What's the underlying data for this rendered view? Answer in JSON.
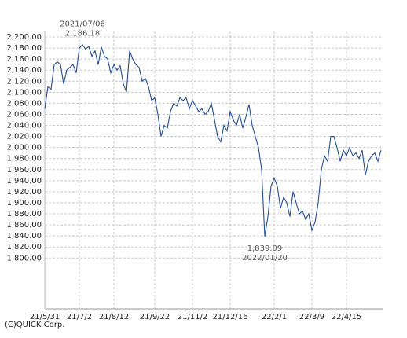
{
  "chart_data": {
    "type": "line",
    "categories": [
      "21/5/31",
      null,
      null,
      null,
      null,
      null,
      null,
      null,
      null,
      null,
      null,
      "21/7/2",
      null,
      null,
      null,
      null,
      null,
      null,
      null,
      null,
      null,
      null,
      "21/8/12",
      null,
      null,
      null,
      null,
      null,
      null,
      null,
      null,
      null,
      null,
      null,
      null,
      "21/9/22",
      null,
      null,
      null,
      null,
      null,
      null,
      null,
      null,
      null,
      null,
      null,
      "21/11/2",
      null,
      null,
      null,
      null,
      null,
      null,
      null,
      null,
      null,
      null,
      null,
      "21/12/16",
      null,
      null,
      null,
      null,
      null,
      null,
      null,
      null,
      null,
      null,
      null,
      null,
      null,
      "22/2/1",
      null,
      null,
      null,
      null,
      null,
      null,
      null,
      null,
      null,
      null,
      null,
      "22/3/9",
      null,
      null,
      null,
      null,
      null,
      null,
      null,
      null,
      null,
      null,
      "22/4/15",
      null,
      null,
      null,
      null,
      null,
      null,
      null,
      null,
      null,
      null,
      null
    ],
    "values": [
      2070,
      2110,
      2105,
      2150,
      2155,
      2150,
      2115,
      2140,
      2145,
      2150,
      2135,
      2180,
      2186.18,
      2178,
      2183,
      2165,
      2175,
      2150,
      2182,
      2165,
      2160,
      2135,
      2150,
      2140,
      2148,
      2115,
      2100,
      2175,
      2160,
      2150,
      2145,
      2120,
      2125,
      2110,
      2085,
      2090,
      2060,
      2020,
      2040,
      2035,
      2065,
      2080,
      2075,
      2090,
      2085,
      2090,
      2070,
      2085,
      2075,
      2065,
      2070,
      2060,
      2065,
      2080,
      2050,
      2020,
      2010,
      2040,
      2030,
      2065,
      2050,
      2040,
      2060,
      2035,
      2055,
      2078,
      2040,
      2020,
      2000,
      1960,
      1839.09,
      1875,
      1930,
      1945,
      1930,
      1890,
      1910,
      1900,
      1875,
      1920,
      1900,
      1880,
      1885,
      1870,
      1880,
      1850,
      1865,
      1900,
      1960,
      1985,
      1975,
      2020,
      2020,
      2000,
      1975,
      1995,
      1985,
      2000,
      1985,
      1990,
      1980,
      1995,
      1950,
      1975,
      1985,
      1990,
      1975,
      1995
    ],
    "value_labels": [
      null,
      null,
      null,
      null,
      null,
      null,
      null,
      null,
      null,
      null,
      null,
      null,
      "2,186.18",
      null,
      null,
      null,
      null,
      null,
      null,
      null,
      null,
      null,
      null,
      null,
      null,
      null,
      null,
      null,
      null,
      null,
      null,
      null,
      null,
      null,
      null,
      null,
      null,
      null,
      null,
      null,
      null,
      null,
      null,
      null,
      null,
      null,
      null,
      null,
      null,
      null,
      null,
      null,
      null,
      null,
      null,
      null,
      null,
      null,
      null,
      null,
      null,
      null,
      null,
      null,
      null,
      null,
      null,
      null,
      null,
      null,
      "1,839.09",
      null,
      null,
      null,
      null,
      null,
      null,
      null,
      null,
      null,
      null,
      null,
      null,
      null,
      null,
      null,
      null,
      null,
      null,
      null,
      null,
      null,
      null,
      null,
      null,
      null,
      null,
      null,
      null,
      null,
      null,
      null,
      null,
      null,
      null,
      null,
      null,
      null
    ],
    "annotations": [
      "2021/07/06",
      "2022/01/20"
    ],
    "color": "#1f4f9e",
    "ylim": [
      1708,
      2200
    ],
    "yticks": [
      {
        "value": 1800,
        "label": "1,800.00"
      },
      {
        "value": 1820,
        "label": "1,820.00"
      },
      {
        "value": 1840,
        "label": "1,840.00"
      },
      {
        "value": 1860,
        "label": "1,860.00"
      },
      {
        "value": 1880,
        "label": "1,880.00"
      },
      {
        "value": 1900,
        "label": "1,900.00"
      },
      {
        "value": 1920,
        "label": "1,920.00"
      },
      {
        "value": 1940,
        "label": "1,940.00"
      },
      {
        "value": 1960,
        "label": "1,960.00"
      },
      {
        "value": 1980,
        "label": "1,980.00"
      },
      {
        "value": 2000,
        "label": "2,000.00"
      },
      {
        "value": 2020,
        "label": "2,020.00"
      },
      {
        "value": 2040,
        "label": "2,040.00"
      },
      {
        "value": 2060,
        "label": "2,060.00"
      },
      {
        "value": 2080,
        "label": "2,080.00"
      },
      {
        "value": 2100,
        "label": "2,100.00"
      },
      {
        "value": 2120,
        "label": "2,120.00"
      },
      {
        "value": 2140,
        "label": "2,140.00"
      },
      {
        "value": 2160,
        "label": "2,160.00"
      },
      {
        "value": 2180,
        "label": "2,180.00"
      },
      {
        "value": 2200,
        "label": "2,200.00"
      }
    ],
    "grid": true,
    "source": "(C)QUICK Corp."
  }
}
